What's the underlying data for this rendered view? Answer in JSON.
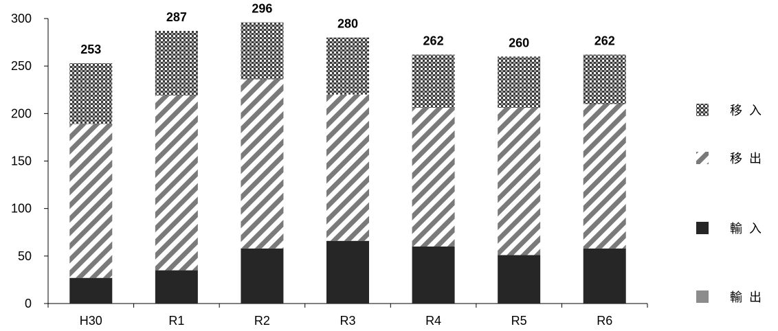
{
  "chart_data": {
    "type": "bar",
    "stacked": true,
    "categories": [
      "H30",
      "R1",
      "R2",
      "R3",
      "R4",
      "R5",
      "R6"
    ],
    "series": [
      {
        "name": "輸出",
        "values": [
          0,
          0,
          0,
          0,
          0,
          0,
          0
        ],
        "color": "#8c8c8c",
        "pattern": "solid-gray"
      },
      {
        "name": "輸入",
        "values": [
          27,
          35,
          58,
          66,
          60,
          51,
          58
        ],
        "color": "#262626",
        "pattern": "solid-black"
      },
      {
        "name": "移出",
        "values": [
          162,
          184,
          178,
          154,
          146,
          155,
          152
        ],
        "color": "#7f7f7f",
        "pattern": "diagonal-stripes"
      },
      {
        "name": "移入",
        "values": [
          64,
          68,
          60,
          60,
          56,
          54,
          52
        ],
        "color": "#404040",
        "pattern": "checker"
      }
    ],
    "totals": [
      253,
      287,
      296,
      280,
      262,
      260,
      262
    ],
    "ylim": [
      0,
      300
    ],
    "yticks": [
      0,
      50,
      100,
      150,
      200,
      250,
      300
    ],
    "title": "",
    "xlabel": "",
    "ylabel": "",
    "grid": false,
    "legend_position": "right",
    "legend_order": [
      "移入",
      "移出",
      "輸入",
      "輸出"
    ]
  }
}
